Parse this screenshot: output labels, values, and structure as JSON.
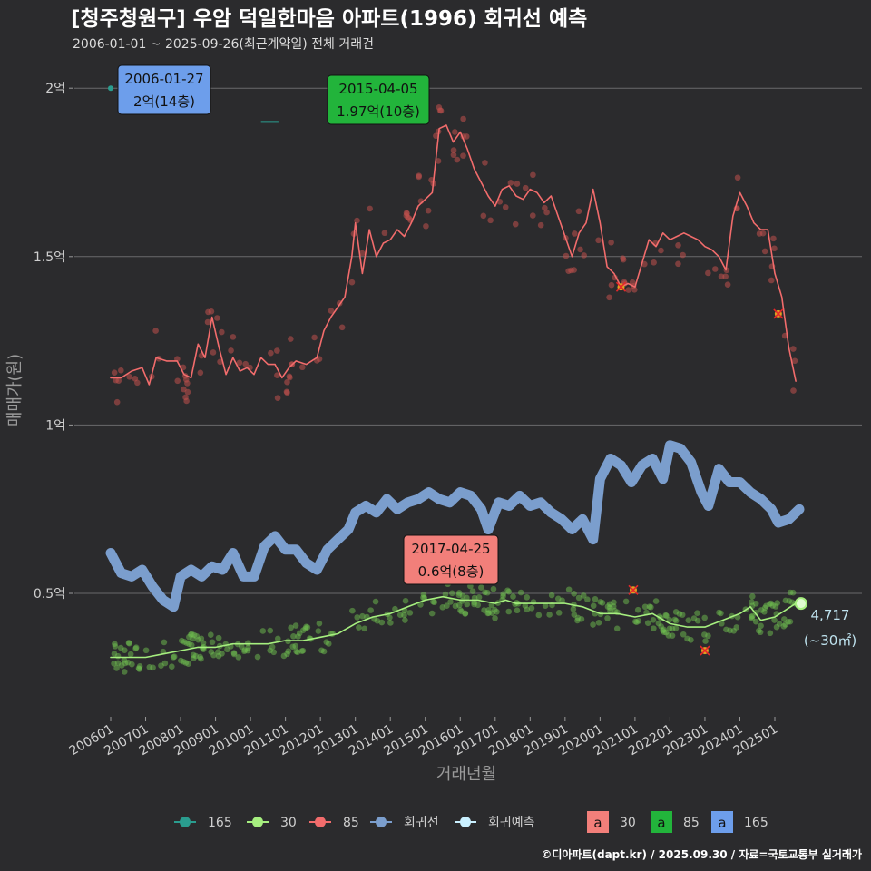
{
  "chart_data": {
    "type": "line",
    "title": "[청주청원구] 우암 덕일한마음 아파트(1996) 회귀선 예측",
    "subtitle": "2006-01-01 ~ 2025-09-26(최근계약일) 전체 거래건",
    "xlabel": "거래년월",
    "ylabel": "매매가(원)",
    "ylim": [
      0.15,
      2.1
    ],
    "y_ticks": [
      {
        "value": 2.0,
        "label": "2억"
      },
      {
        "value": 1.5,
        "label": "1.5억"
      },
      {
        "value": 1.0,
        "label": "1억"
      },
      {
        "value": 0.5,
        "label": "0.5억"
      }
    ],
    "x_ticks": [
      "200601",
      "200701",
      "200801",
      "200901",
      "201001",
      "201101",
      "201201",
      "201301",
      "201401",
      "201501",
      "201601",
      "201701",
      "201801",
      "201901",
      "202001",
      "202101",
      "202201",
      "202301",
      "202401",
      "202501"
    ],
    "series": [
      {
        "name": "85",
        "color": "#f26c6c",
        "unit": "억",
        "points": [
          [
            2006.0,
            1.14
          ],
          [
            2006.3,
            1.14
          ],
          [
            2006.6,
            1.16
          ],
          [
            2006.9,
            1.17
          ],
          [
            2007.1,
            1.12
          ],
          [
            2007.3,
            1.2
          ],
          [
            2007.6,
            1.19
          ],
          [
            2007.9,
            1.19
          ],
          [
            2008.1,
            1.15
          ],
          [
            2008.3,
            1.14
          ],
          [
            2008.5,
            1.24
          ],
          [
            2008.7,
            1.2
          ],
          [
            2008.9,
            1.32
          ],
          [
            2009.1,
            1.23
          ],
          [
            2009.3,
            1.15
          ],
          [
            2009.5,
            1.2
          ],
          [
            2009.7,
            1.16
          ],
          [
            2009.9,
            1.17
          ],
          [
            2010.1,
            1.15
          ],
          [
            2010.3,
            1.2
          ],
          [
            2010.5,
            1.18
          ],
          [
            2010.7,
            1.18
          ],
          [
            2010.9,
            1.14
          ],
          [
            2011.1,
            1.17
          ],
          [
            2011.3,
            1.19
          ],
          [
            2011.6,
            1.18
          ],
          [
            2011.9,
            1.2
          ],
          [
            2012.1,
            1.28
          ],
          [
            2012.3,
            1.32
          ],
          [
            2012.5,
            1.35
          ],
          [
            2012.7,
            1.38
          ],
          [
            2012.9,
            1.5
          ],
          [
            2013.0,
            1.6
          ],
          [
            2013.2,
            1.45
          ],
          [
            2013.4,
            1.58
          ],
          [
            2013.6,
            1.5
          ],
          [
            2013.8,
            1.54
          ],
          [
            2014.0,
            1.55
          ],
          [
            2014.2,
            1.58
          ],
          [
            2014.4,
            1.56
          ],
          [
            2014.6,
            1.6
          ],
          [
            2014.8,
            1.65
          ],
          [
            2015.0,
            1.67
          ],
          [
            2015.2,
            1.69
          ],
          [
            2015.4,
            1.88
          ],
          [
            2015.6,
            1.89
          ],
          [
            2015.8,
            1.84
          ],
          [
            2016.0,
            1.87
          ],
          [
            2016.2,
            1.82
          ],
          [
            2016.4,
            1.76
          ],
          [
            2016.6,
            1.72
          ],
          [
            2016.8,
            1.68
          ],
          [
            2017.0,
            1.65
          ],
          [
            2017.2,
            1.7
          ],
          [
            2017.4,
            1.71
          ],
          [
            2017.6,
            1.68
          ],
          [
            2017.8,
            1.67
          ],
          [
            2018.0,
            1.7
          ],
          [
            2018.2,
            1.69
          ],
          [
            2018.4,
            1.66
          ],
          [
            2018.6,
            1.68
          ],
          [
            2018.8,
            1.62
          ],
          [
            2019.0,
            1.56
          ],
          [
            2019.2,
            1.5
          ],
          [
            2019.4,
            1.57
          ],
          [
            2019.6,
            1.6
          ],
          [
            2019.8,
            1.7
          ],
          [
            2020.0,
            1.6
          ],
          [
            2020.2,
            1.47
          ],
          [
            2020.4,
            1.45
          ],
          [
            2020.6,
            1.41
          ],
          [
            2020.8,
            1.42
          ],
          [
            2021.0,
            1.41
          ],
          [
            2021.2,
            1.48
          ],
          [
            2021.4,
            1.55
          ],
          [
            2021.6,
            1.53
          ],
          [
            2021.8,
            1.57
          ],
          [
            2022.0,
            1.55
          ],
          [
            2022.2,
            1.56
          ],
          [
            2022.4,
            1.57
          ],
          [
            2022.6,
            1.56
          ],
          [
            2022.8,
            1.55
          ],
          [
            2023.0,
            1.53
          ],
          [
            2023.2,
            1.52
          ],
          [
            2023.4,
            1.5
          ],
          [
            2023.6,
            1.46
          ],
          [
            2023.8,
            1.62
          ],
          [
            2024.0,
            1.69
          ],
          [
            2024.2,
            1.65
          ],
          [
            2024.4,
            1.6
          ],
          [
            2024.6,
            1.58
          ],
          [
            2024.8,
            1.58
          ],
          [
            2025.0,
            1.45
          ],
          [
            2025.2,
            1.38
          ],
          [
            2025.4,
            1.23
          ],
          [
            2025.6,
            1.13
          ]
        ]
      },
      {
        "name": "30",
        "color": "#a6ef7f",
        "unit": "억",
        "points": [
          [
            2006.0,
            0.31
          ],
          [
            2006.5,
            0.31
          ],
          [
            2007.0,
            0.31
          ],
          [
            2007.5,
            0.32
          ],
          [
            2008.0,
            0.33
          ],
          [
            2008.5,
            0.34
          ],
          [
            2009.0,
            0.34
          ],
          [
            2009.5,
            0.35
          ],
          [
            2010.0,
            0.35
          ],
          [
            2010.5,
            0.35
          ],
          [
            2011.0,
            0.36
          ],
          [
            2011.5,
            0.36
          ],
          [
            2012.0,
            0.37
          ],
          [
            2012.5,
            0.38
          ],
          [
            2013.0,
            0.41
          ],
          [
            2013.5,
            0.43
          ],
          [
            2014.0,
            0.44
          ],
          [
            2014.5,
            0.46
          ],
          [
            2015.0,
            0.48
          ],
          [
            2015.5,
            0.49
          ],
          [
            2016.0,
            0.48
          ],
          [
            2016.5,
            0.48
          ],
          [
            2017.0,
            0.47
          ],
          [
            2017.3,
            0.48
          ],
          [
            2017.6,
            0.47
          ],
          [
            2018.0,
            0.47
          ],
          [
            2018.5,
            0.47
          ],
          [
            2019.0,
            0.47
          ],
          [
            2019.5,
            0.46
          ],
          [
            2020.0,
            0.44
          ],
          [
            2020.5,
            0.44
          ],
          [
            2021.0,
            0.43
          ],
          [
            2021.5,
            0.44
          ],
          [
            2022.0,
            0.41
          ],
          [
            2022.5,
            0.4
          ],
          [
            2023.0,
            0.4
          ],
          [
            2023.5,
            0.42
          ],
          [
            2024.0,
            0.44
          ],
          [
            2024.3,
            0.46
          ],
          [
            2024.6,
            0.42
          ],
          [
            2025.0,
            0.43
          ],
          [
            2025.3,
            0.45
          ],
          [
            2025.6,
            0.47
          ]
        ]
      },
      {
        "name": "165",
        "color": "#2a9d8f",
        "unit": "억",
        "points": [
          [
            2006.0,
            2.0
          ],
          [
            2010.3,
            1.9
          ],
          [
            2010.8,
            1.9
          ]
        ]
      },
      {
        "name": "회귀선",
        "color": "#7b9ecd",
        "unit": "억",
        "points": [
          [
            2006.0,
            0.62
          ],
          [
            2006.3,
            0.56
          ],
          [
            2006.6,
            0.55
          ],
          [
            2006.9,
            0.57
          ],
          [
            2007.2,
            0.52
          ],
          [
            2007.5,
            0.48
          ],
          [
            2007.8,
            0.46
          ],
          [
            2008.0,
            0.55
          ],
          [
            2008.3,
            0.57
          ],
          [
            2008.6,
            0.55
          ],
          [
            2008.9,
            0.58
          ],
          [
            2009.2,
            0.57
          ],
          [
            2009.5,
            0.62
          ],
          [
            2009.8,
            0.55
          ],
          [
            2010.1,
            0.55
          ],
          [
            2010.4,
            0.64
          ],
          [
            2010.7,
            0.67
          ],
          [
            2011.0,
            0.63
          ],
          [
            2011.3,
            0.63
          ],
          [
            2011.6,
            0.59
          ],
          [
            2011.9,
            0.57
          ],
          [
            2012.2,
            0.63
          ],
          [
            2012.5,
            0.66
          ],
          [
            2012.8,
            0.69
          ],
          [
            2013.0,
            0.74
          ],
          [
            2013.3,
            0.76
          ],
          [
            2013.6,
            0.74
          ],
          [
            2013.9,
            0.78
          ],
          [
            2014.2,
            0.75
          ],
          [
            2014.5,
            0.77
          ],
          [
            2014.8,
            0.78
          ],
          [
            2015.1,
            0.8
          ],
          [
            2015.4,
            0.78
          ],
          [
            2015.7,
            0.77
          ],
          [
            2016.0,
            0.8
          ],
          [
            2016.3,
            0.79
          ],
          [
            2016.6,
            0.75
          ],
          [
            2016.8,
            0.69
          ],
          [
            2017.1,
            0.77
          ],
          [
            2017.4,
            0.76
          ],
          [
            2017.7,
            0.79
          ],
          [
            2018.0,
            0.76
          ],
          [
            2018.3,
            0.77
          ],
          [
            2018.6,
            0.74
          ],
          [
            2018.9,
            0.72
          ],
          [
            2019.2,
            0.69
          ],
          [
            2019.5,
            0.72
          ],
          [
            2019.8,
            0.66
          ],
          [
            2020.0,
            0.84
          ],
          [
            2020.3,
            0.9
          ],
          [
            2020.6,
            0.88
          ],
          [
            2020.9,
            0.83
          ],
          [
            2021.2,
            0.88
          ],
          [
            2021.5,
            0.9
          ],
          [
            2021.8,
            0.84
          ],
          [
            2022.0,
            0.94
          ],
          [
            2022.3,
            0.93
          ],
          [
            2022.6,
            0.89
          ],
          [
            2022.9,
            0.8
          ],
          [
            2023.1,
            0.76
          ],
          [
            2023.4,
            0.87
          ],
          [
            2023.7,
            0.83
          ],
          [
            2024.0,
            0.83
          ],
          [
            2024.3,
            0.8
          ],
          [
            2024.6,
            0.78
          ],
          [
            2024.9,
            0.75
          ],
          [
            2025.1,
            0.71
          ],
          [
            2025.4,
            0.72
          ],
          [
            2025.7,
            0.75
          ]
        ]
      }
    ],
    "predicted_point": {
      "series": "회귀예측",
      "x": 2025.75,
      "y": 0.47,
      "color": "#c9f0ff"
    },
    "annotations": [
      {
        "date": "2006-01-27",
        "price": "2억(14층)",
        "x": 2006.0,
        "y": 2.0,
        "bg": "#6d9eeb"
      },
      {
        "date": "2015-04-05",
        "price": "1.97억(10층)",
        "x": 2015.3,
        "y": 1.97,
        "bg": "#22b43b"
      },
      {
        "date": "2017-04-25",
        "price": "0.6억(8층)",
        "x": 2017.3,
        "y": 0.6,
        "bg": "#f27f7a"
      }
    ],
    "end_label": {
      "count": "4,717",
      "area": "(~30㎡)"
    },
    "legend": {
      "lines": [
        {
          "label": "165",
          "color": "#2a9d8f"
        },
        {
          "label": "30",
          "color": "#a6ef7f"
        },
        {
          "label": "85",
          "color": "#f26c6c"
        },
        {
          "label": "회귀선",
          "color": "#7b9ecd"
        },
        {
          "label": "회귀예측",
          "color": "#c9f0ff"
        }
      ],
      "boxes": [
        {
          "key": "a",
          "label": "30",
          "color": "#f27f7a"
        },
        {
          "key": "a",
          "label": "85",
          "color": "#22b43b"
        },
        {
          "key": "a",
          "label": "165",
          "color": "#6d9eeb"
        }
      ],
      "position": "bottom"
    },
    "caption": "©디아파트(dapt.kr) / 2025.09.30 / 자료=국토교통부 실거래가"
  }
}
